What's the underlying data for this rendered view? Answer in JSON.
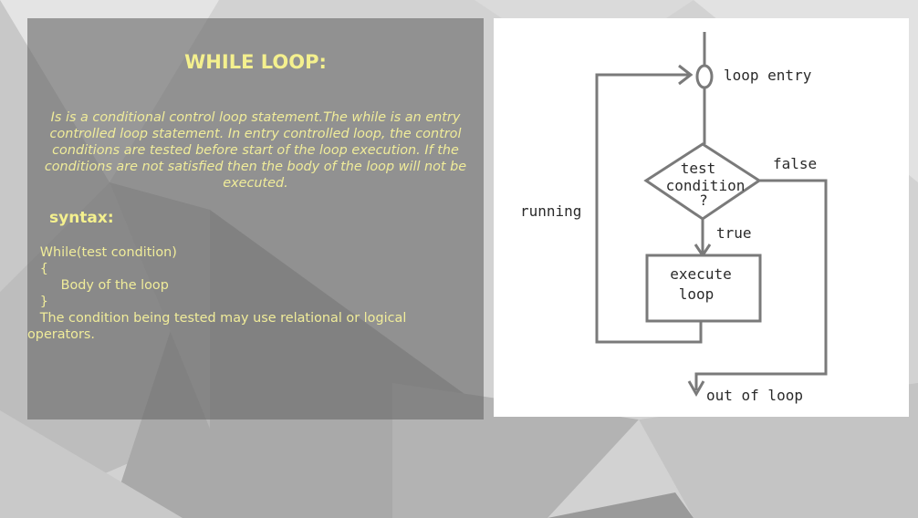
{
  "slide": {
    "title": "WHILE LOOP:",
    "description": "Is is a conditional control loop statement.The while is an entry controlled loop statement. In entry controlled loop, the control conditions are tested before start of the loop execution. If the conditions are not satisfied then the body of the loop will not be executed.",
    "syntax_label": "syntax:",
    "code_lines": [
      "   While(test condition)",
      "   {",
      "        Body of the loop",
      "   }",
      "   The condition being tested may use relational or logical",
      "operators."
    ]
  },
  "flowchart": {
    "loop_entry": "loop entry",
    "false_label": "false",
    "test_condition_lines": [
      "test",
      "condition",
      "?"
    ],
    "running_label": "running",
    "true_label": "true",
    "execute_lines": [
      "execute",
      "loop"
    ],
    "out_of_loop": "out of loop"
  },
  "colors": {
    "text_yellow": "#f4f08e",
    "panel_gray": "#696969",
    "diagram_line": "#7a7a7a"
  }
}
